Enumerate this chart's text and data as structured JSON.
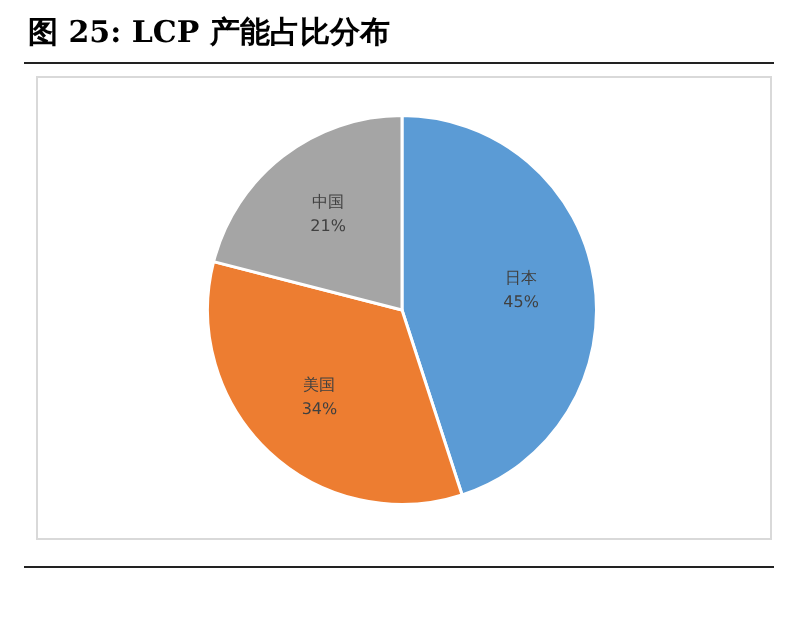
{
  "chart_data": {
    "type": "pie",
    "title": "图 25:  LCP 产能占比分布",
    "categories": [
      "日本",
      "美国",
      "中国"
    ],
    "values": [
      45,
      34,
      21
    ],
    "colors": [
      "#5b9bd5",
      "#ed7d31",
      "#a5a5a5"
    ],
    "value_labels": [
      "45%",
      "34%",
      "21%"
    ],
    "legend": false
  }
}
